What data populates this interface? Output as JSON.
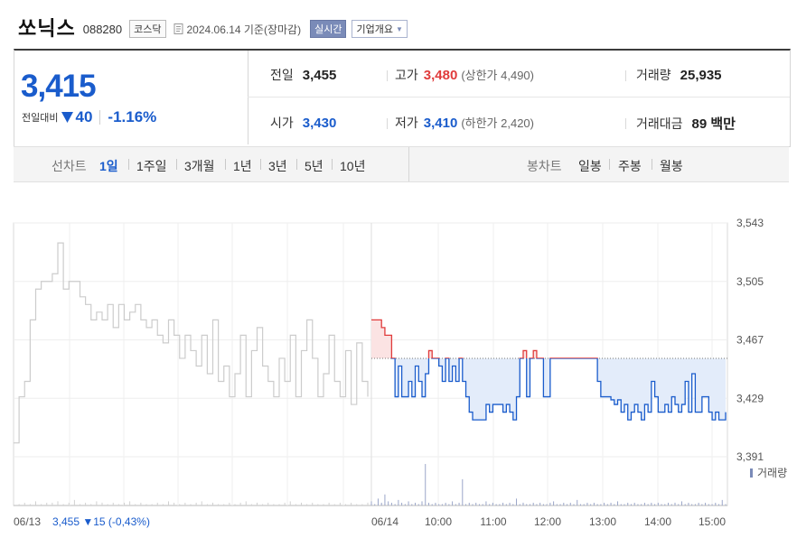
{
  "header": {
    "name": "쏘닉스",
    "code": "088280",
    "market": "코스닥",
    "date": "2024.06.14 기준(장마감)",
    "realtime_label": "실시간",
    "company_label": "기업개요"
  },
  "price": {
    "current": "3,415",
    "compare_label": "전일대비",
    "change": "40",
    "change_pct": "-1.16%",
    "direction": "down"
  },
  "info": {
    "prev_label": "전일",
    "prev": "3,455",
    "high_label": "고가",
    "high": "3,480",
    "upper_limit": "(상한가 4,490)",
    "volume_label": "거래량",
    "volume": "25,935",
    "open_label": "시가",
    "open": "3,430",
    "low_label": "저가",
    "low": "3,410",
    "lower_limit": "(하한가 2,420)",
    "amount_label": "거래대금",
    "amount": "89 백만"
  },
  "period": {
    "line_label": "선차트",
    "line_items": [
      "1일",
      "1주일",
      "3개월",
      "1년",
      "3년",
      "5년",
      "10년"
    ],
    "active": "1일",
    "candle_label": "봉차트",
    "candle_items": [
      "일봉",
      "주봉",
      "월봉"
    ]
  },
  "colors": {
    "up": "#e03b3b",
    "down": "#1a5ccc",
    "prev_day_line": "#cccccc",
    "volume": "#9aa6c9"
  },
  "chart_data": {
    "type": "line",
    "y_ticks": [
      "3,543",
      "3,505",
      "3,467",
      "3,429",
      "3,391"
    ],
    "ylim": [
      3391,
      3543
    ],
    "reference": 3455,
    "x_labels": [
      "06/13",
      "06/14",
      "10:00",
      "11:00",
      "12:00",
      "13:00",
      "14:00",
      "15:00"
    ],
    "prev_day_summary": "3,455 ▼15 (-0,43%)",
    "volume_legend": "거래량",
    "prev_day_series": [
      3400,
      3430,
      3440,
      3480,
      3500,
      3505,
      3505,
      3510,
      3530,
      3500,
      3505,
      3505,
      3495,
      3490,
      3480,
      3485,
      3480,
      3490,
      3475,
      3490,
      3480,
      3485,
      3490,
      3480,
      3475,
      3480,
      3470,
      3465,
      3480,
      3470,
      3455,
      3470,
      3460,
      3450,
      3470,
      3445,
      3480,
      3440,
      3450,
      3430,
      3445,
      3470,
      3430,
      3460,
      3475,
      3450,
      3440,
      3430,
      3455,
      3440,
      3470,
      3430,
      3460,
      3480,
      3455,
      3430,
      3445,
      3470,
      3440,
      3430,
      3460,
      3425,
      3465,
      3440,
      3430
    ],
    "today_series": [
      3480,
      3480,
      3480,
      3475,
      3470,
      3470,
      3455,
      3430,
      3450,
      3430,
      3430,
      3440,
      3430,
      3450,
      3440,
      3430,
      3445,
      3460,
      3455,
      3455,
      3450,
      3440,
      3455,
      3440,
      3450,
      3440,
      3455,
      3440,
      3430,
      3420,
      3415,
      3415,
      3415,
      3415,
      3425,
      3420,
      3425,
      3425,
      3425,
      3420,
      3425,
      3420,
      3415,
      3430,
      3455,
      3460,
      3430,
      3455,
      3460,
      3455,
      3455,
      3430,
      3430,
      3455,
      3455,
      3455,
      3455,
      3455,
      3455,
      3455,
      3455,
      3455,
      3455,
      3455,
      3455,
      3455,
      3455,
      3440,
      3430,
      3430,
      3430,
      3428,
      3425,
      3428,
      3420,
      3425,
      3415,
      3420,
      3425,
      3420,
      3415,
      3425,
      3420,
      3440,
      3430,
      3420,
      3420,
      3425,
      3420,
      3430,
      3425,
      3420,
      3425,
      3440,
      3420,
      3445,
      3420,
      3420,
      3430,
      3430,
      3420,
      3415,
      3420,
      3415,
      3415,
      3420
    ],
    "prev_day_volume": [
      0,
      1,
      2,
      1,
      3,
      1,
      2,
      2,
      3,
      1,
      2,
      4,
      1,
      2,
      1,
      3,
      2,
      1,
      2,
      1,
      2,
      3,
      1,
      2,
      1,
      1,
      2,
      1,
      3,
      2,
      1,
      2,
      1,
      2,
      3,
      1,
      2,
      1,
      1,
      2,
      1,
      2,
      3,
      1,
      2,
      1,
      2,
      1,
      1,
      2,
      3,
      1,
      2,
      1,
      2,
      1,
      1,
      2,
      1,
      2,
      1,
      2,
      1,
      1,
      2
    ],
    "today_volume": [
      3,
      1,
      5,
      2,
      8,
      3,
      2,
      1,
      4,
      2,
      1,
      3,
      1,
      2,
      1,
      3,
      30,
      2,
      1,
      2,
      1,
      1,
      2,
      1,
      3,
      1,
      2,
      19,
      1,
      2,
      1,
      2,
      1,
      1,
      3,
      1,
      2,
      1,
      1,
      2,
      1,
      2,
      1,
      5,
      1,
      2,
      1,
      1,
      2,
      1,
      2,
      1,
      1,
      2,
      3,
      1,
      1,
      2,
      1,
      2,
      1,
      4,
      1,
      1,
      2,
      1,
      2,
      1,
      1,
      2,
      1,
      2,
      1,
      3,
      1,
      1,
      2,
      1,
      2,
      1,
      1,
      2,
      1,
      2,
      1,
      2,
      1,
      1,
      2,
      1,
      2,
      1,
      3,
      1,
      2,
      1,
      1,
      2,
      1,
      2,
      1,
      1,
      2,
      1,
      4,
      1
    ]
  }
}
